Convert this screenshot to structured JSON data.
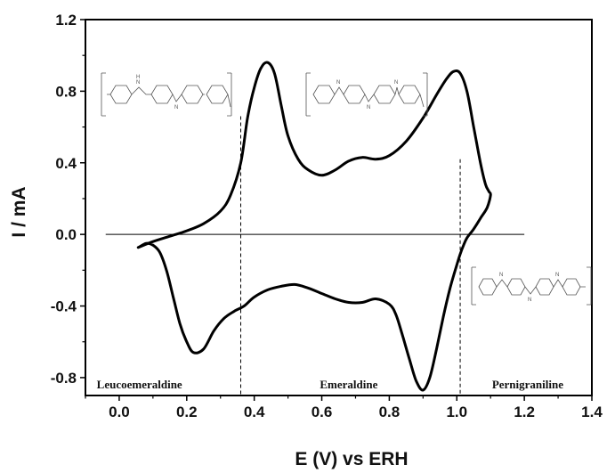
{
  "chart_data": {
    "type": "line",
    "title": "",
    "xlabel": "E (V) vs ERH",
    "ylabel": "I / mA",
    "xlim": [
      -0.1,
      1.4
    ],
    "ylim": [
      -0.9,
      1.2
    ],
    "x_ticks": [
      0.0,
      0.2,
      0.4,
      0.6,
      0.8,
      1.0,
      1.2,
      1.4
    ],
    "x_tick_labels": [
      "0.0",
      "0.2",
      "0.4",
      "0.6",
      "0.8",
      "1.0",
      "1.2",
      "1.4"
    ],
    "y_ticks": [
      -0.8,
      -0.4,
      0.0,
      0.4,
      0.8,
      1.2
    ],
    "y_tick_labels": [
      "-0.8",
      "-0.4",
      "0.0",
      "0.4",
      "0.8",
      "1.2"
    ],
    "grid": false,
    "line_color": "#000000",
    "series": [
      {
        "x": [
          0.06,
          0.1,
          0.15,
          0.2,
          0.25,
          0.3,
          0.33,
          0.36,
          0.38,
          0.4,
          0.42,
          0.44,
          0.46,
          0.48,
          0.5,
          0.53,
          0.56,
          0.6,
          0.64,
          0.68,
          0.72,
          0.76,
          0.8,
          0.85,
          0.9,
          0.94,
          0.97,
          0.99,
          1.01,
          1.03,
          1.05,
          1.07,
          1.085,
          1.095,
          1.1,
          1.09,
          1.07,
          1.05,
          1.03,
          1.02,
          1.01,
          1.0,
          0.98,
          0.96,
          0.94,
          0.92,
          0.9,
          0.88,
          0.86,
          0.84,
          0.82,
          0.8,
          0.76,
          0.72,
          0.68,
          0.64,
          0.6,
          0.56,
          0.52,
          0.48,
          0.44,
          0.4,
          0.37,
          0.34,
          0.31,
          0.28,
          0.25,
          0.22,
          0.2,
          0.18,
          0.16,
          0.14,
          0.12,
          0.1,
          0.08,
          0.06
        ],
        "y": [
          -0.07,
          -0.04,
          -0.01,
          0.02,
          0.06,
          0.13,
          0.22,
          0.4,
          0.65,
          0.82,
          0.93,
          0.96,
          0.9,
          0.72,
          0.55,
          0.42,
          0.36,
          0.33,
          0.36,
          0.41,
          0.43,
          0.42,
          0.44,
          0.52,
          0.65,
          0.78,
          0.87,
          0.91,
          0.9,
          0.8,
          0.6,
          0.4,
          0.28,
          0.24,
          0.22,
          0.15,
          0.09,
          0.03,
          -0.02,
          -0.06,
          -0.11,
          -0.17,
          -0.3,
          -0.46,
          -0.64,
          -0.8,
          -0.87,
          -0.82,
          -0.7,
          -0.57,
          -0.45,
          -0.39,
          -0.36,
          -0.38,
          -0.38,
          -0.36,
          -0.33,
          -0.3,
          -0.28,
          -0.29,
          -0.31,
          -0.35,
          -0.4,
          -0.43,
          -0.47,
          -0.54,
          -0.64,
          -0.66,
          -0.6,
          -0.5,
          -0.35,
          -0.2,
          -0.1,
          -0.06,
          -0.05,
          -0.07
        ]
      }
    ],
    "baseline": {
      "y": 0.0,
      "x_start": -0.04,
      "x_end": 1.2
    },
    "dividers": [
      0.36,
      1.01
    ],
    "regions": [
      {
        "label": "Leucoemeraldine",
        "x_center": 0.06
      },
      {
        "label": "Emeraldine",
        "x_center": 0.68
      },
      {
        "label": "Pernigraniline",
        "x_center": 1.21
      }
    ],
    "structure_labels": [
      "N",
      "H"
    ]
  }
}
